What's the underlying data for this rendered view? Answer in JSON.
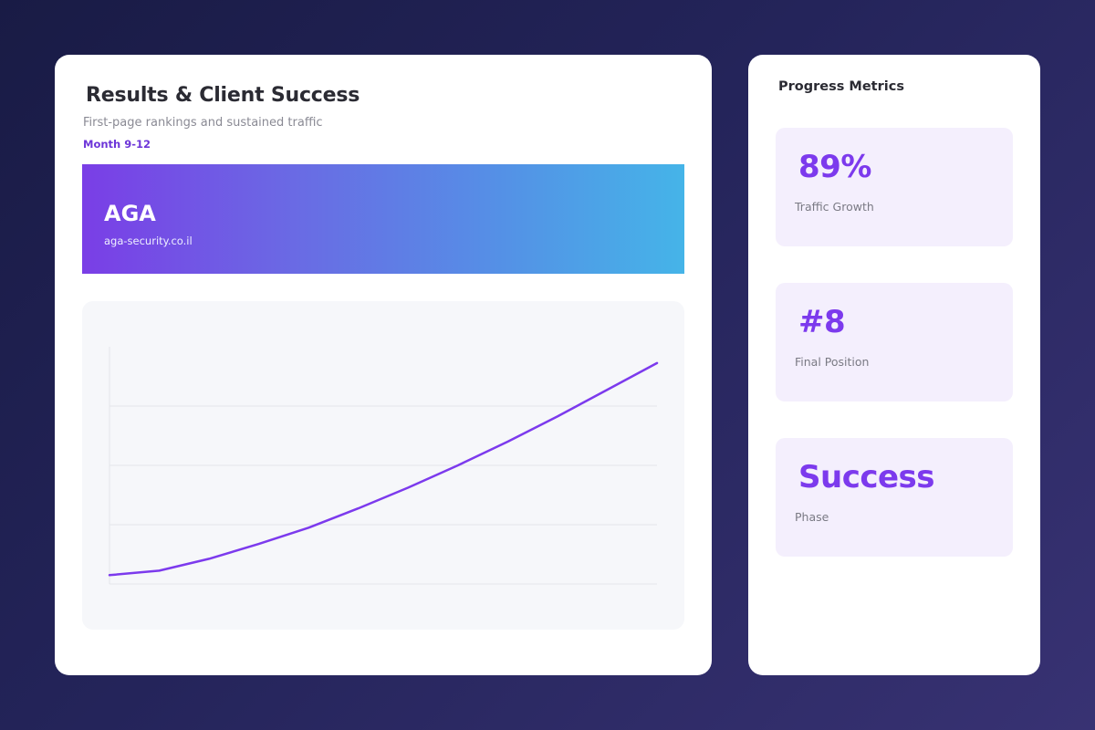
{
  "main": {
    "title": "Results & Client Success",
    "subtitle": "First-page rankings and sustained traffic",
    "phase": "Month 9-12"
  },
  "client": {
    "name": "AGA",
    "domain": "aga-security.co.il"
  },
  "chart_data": {
    "type": "line",
    "title": "",
    "xlabel": "",
    "ylabel": "",
    "grid": true,
    "legend": "none",
    "x": [
      0,
      1,
      2,
      3,
      4,
      5,
      6,
      7,
      8,
      9,
      10,
      11
    ],
    "series": [
      {
        "values": [
          6,
          9,
          17,
          27,
          38,
          51,
          65,
          80,
          96,
          113,
          131,
          149
        ]
      }
    ],
    "ylim": [
      0,
      160
    ],
    "color": "#7c3aed"
  },
  "sidebar": {
    "title": "Progress Metrics",
    "metrics": [
      {
        "value": "89%",
        "label": "Traffic Growth"
      },
      {
        "value": "#8",
        "label": "Final Position"
      },
      {
        "value": "Success",
        "label": "Phase"
      }
    ]
  },
  "colors": {
    "accent": "#7c3aed",
    "metric_bg": "#f4effd",
    "chart_bg": "#f6f7fa",
    "banner_start": "#7a3ee6",
    "banner_end": "#45b4e8"
  }
}
